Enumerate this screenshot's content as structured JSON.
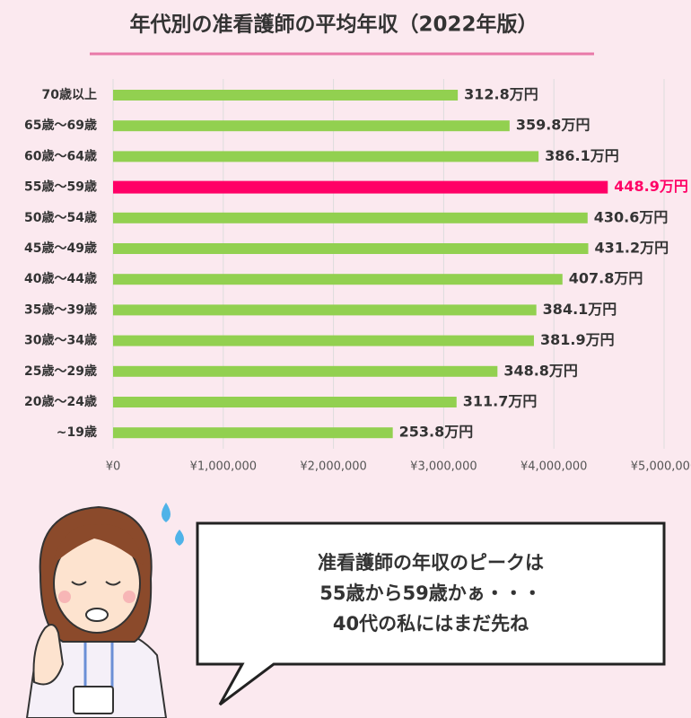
{
  "chart_data": {
    "type": "bar",
    "orientation": "horizontal",
    "title": "年代別の准看護師の平均年収（2022年版）",
    "categories": [
      "70歳以上",
      "65歳～69歳",
      "60歳～64歳",
      "55歳～59歳",
      "50歳～54歳",
      "45歳～49歳",
      "40歳～44歳",
      "35歳～39歳",
      "30歳～34歳",
      "25歳～29歳",
      "20歳～24歳",
      "~19歳"
    ],
    "values": [
      3128000,
      3598000,
      3861000,
      4489000,
      4306000,
      4312000,
      4078000,
      3841000,
      3819000,
      3488000,
      3117000,
      2538000
    ],
    "value_labels": [
      "312.8万円",
      "359.8万円",
      "386.1万円",
      "448.9万円",
      "430.6万円",
      "431.2万円",
      "407.8万円",
      "384.1万円",
      "381.9万円",
      "348.8万円",
      "311.7万円",
      "253.8万円"
    ],
    "colors": [
      "#92d050",
      "#92d050",
      "#92d050",
      "#ff0066",
      "#92d050",
      "#92d050",
      "#92d050",
      "#92d050",
      "#92d050",
      "#92d050",
      "#92d050",
      "#92d050"
    ],
    "xlim": [
      0,
      5000000
    ],
    "xticks": [
      {
        "value": 0,
        "label": "¥0"
      },
      {
        "value": 1000000,
        "label": "¥1,000,000"
      },
      {
        "value": 2000000,
        "label": "¥2,000,000"
      },
      {
        "value": 3000000,
        "label": "¥3,000,000"
      },
      {
        "value": 4000000,
        "label": "¥4,000,000"
      },
      {
        "value": 5000000,
        "label": "¥5,000,000"
      }
    ],
    "grid": true
  },
  "bubble": {
    "lines": [
      "准看護師の年収のピークは",
      "55歳から59歳かぁ・・・",
      "40代の私にはまだ先ね"
    ]
  }
}
